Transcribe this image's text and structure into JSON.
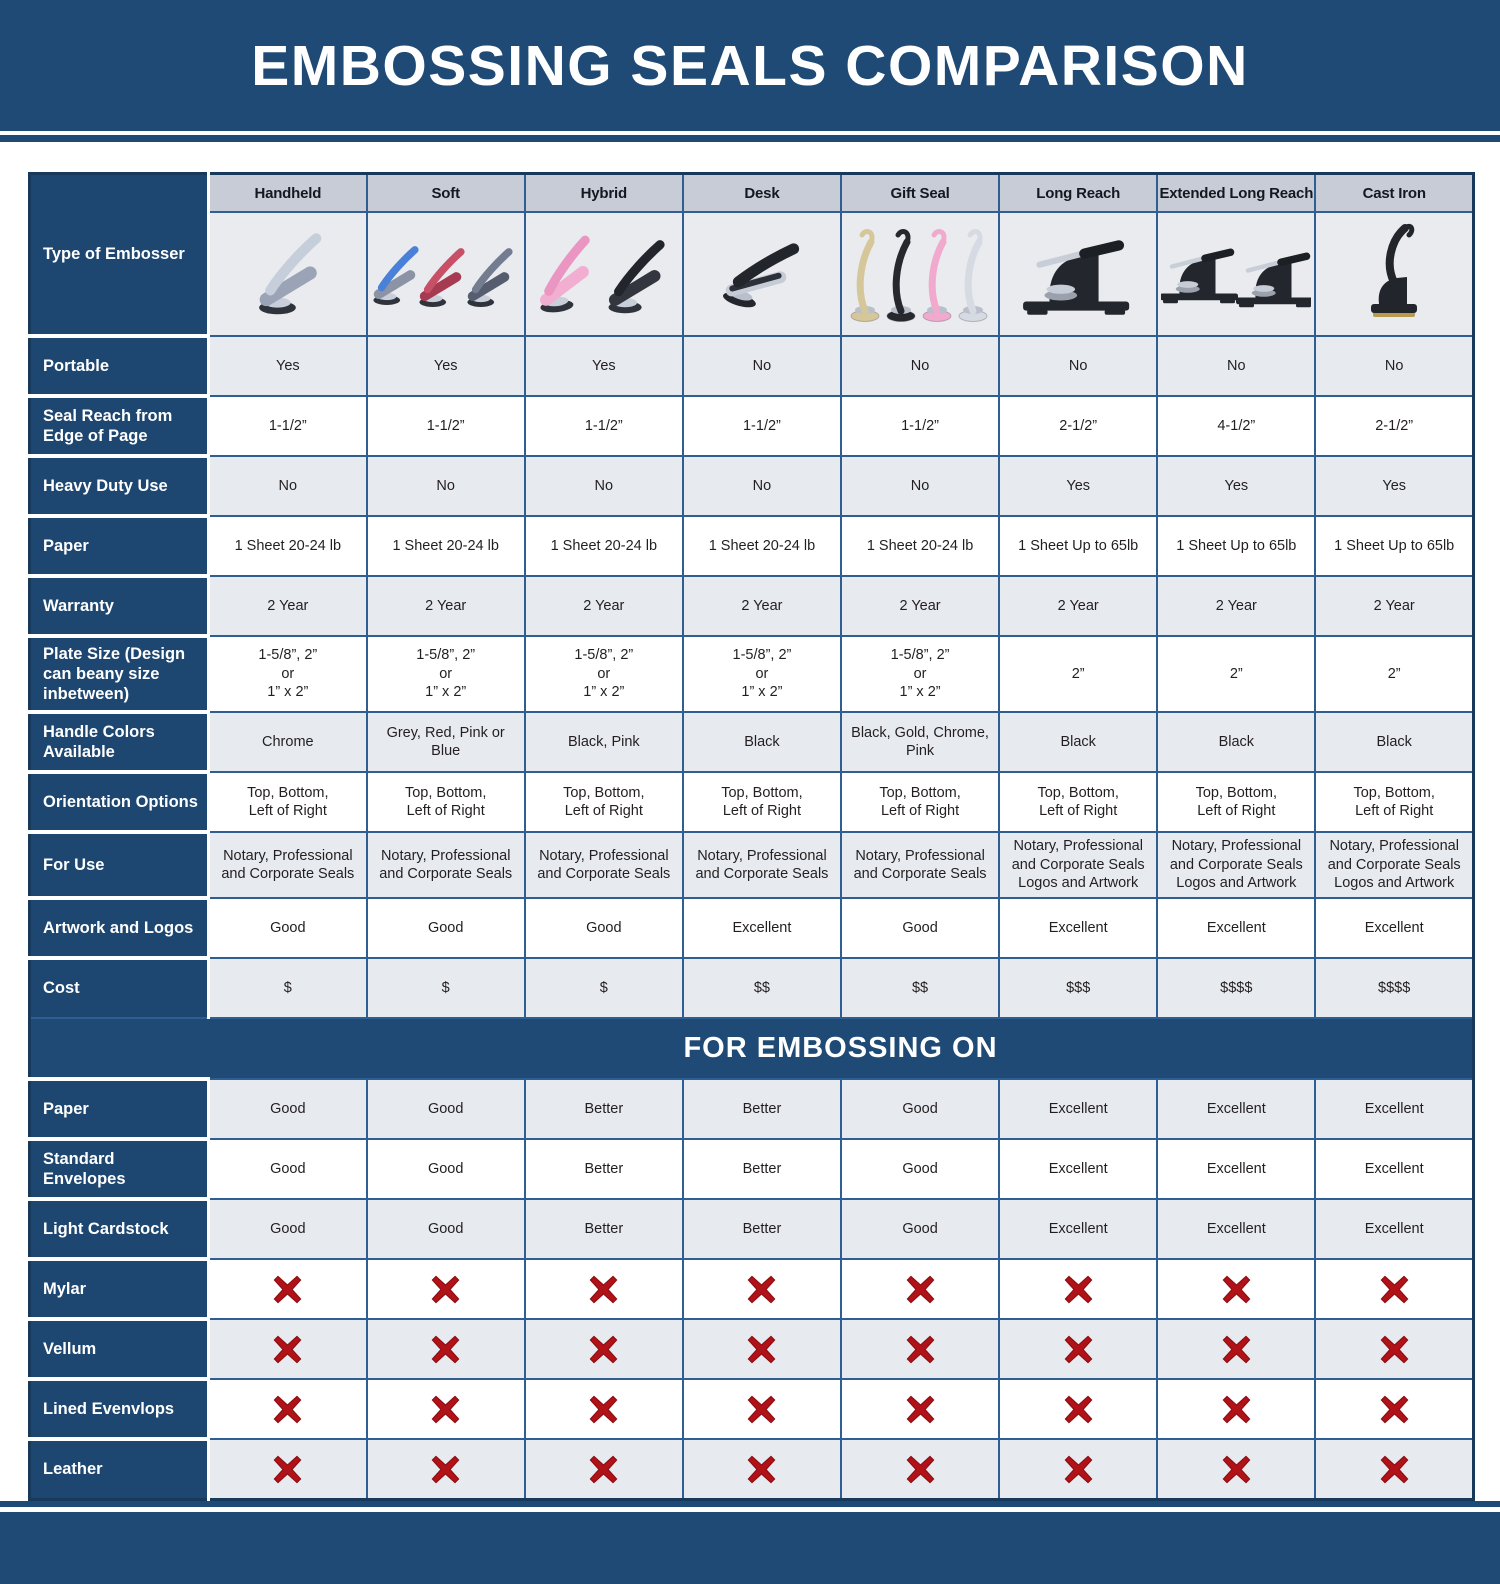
{
  "title": "EMBOSSING SEALS COMPARISON",
  "banner": "FOR EMBOSSING ON",
  "type_row_label": "Type of Embosser",
  "columns": [
    {
      "label": "Handheld",
      "image": "handheld-embosser-icon"
    },
    {
      "label": "Soft",
      "image": "soft-embosser-icon"
    },
    {
      "label": "Hybrid",
      "image": "hybrid-embosser-icon"
    },
    {
      "label": "Desk",
      "image": "desk-embosser-icon"
    },
    {
      "label": "Gift Seal",
      "image": "gift-seal-embosser-icon"
    },
    {
      "label": "Long Reach",
      "image": "long-reach-embosser-icon"
    },
    {
      "label": "Extended Long Reach",
      "image": "extended-long-reach-embosser-icon"
    },
    {
      "label": "Cast Iron",
      "image": "cast-iron-embosser-icon"
    }
  ],
  "spec_rows": [
    {
      "label": "Portable",
      "values": [
        "Yes",
        "Yes",
        "Yes",
        "No",
        "No",
        "No",
        "No",
        "No"
      ]
    },
    {
      "label": "Seal Reach from Edge of Page",
      "values": [
        "1-1/2”",
        "1-1/2”",
        "1-1/2”",
        "1-1/2”",
        "1-1/2”",
        "2-1/2”",
        "4-1/2”",
        "2-1/2”"
      ]
    },
    {
      "label": "Heavy Duty Use",
      "values": [
        "No",
        "No",
        "No",
        "No",
        "No",
        "Yes",
        "Yes",
        "Yes"
      ]
    },
    {
      "label": "Paper",
      "values": [
        "1 Sheet 20-24 lb",
        "1 Sheet 20-24 lb",
        "1 Sheet 20-24 lb",
        "1 Sheet 20-24 lb",
        "1 Sheet 20-24 lb",
        "1 Sheet Up to 65lb",
        "1 Sheet Up to 65lb",
        "1 Sheet Up to 65lb"
      ]
    },
    {
      "label": "Warranty",
      "values": [
        "2 Year",
        "2 Year",
        "2 Year",
        "2 Year",
        "2 Year",
        "2 Year",
        "2 Year",
        "2 Year"
      ]
    },
    {
      "label": "Plate Size (Design can beany size inbetween)",
      "values": [
        "1-5/8”, 2”\nor\n1” x 2”",
        "1-5/8”, 2”\nor\n1” x 2”",
        "1-5/8”, 2”\nor\n1” x 2”",
        "1-5/8”, 2”\nor\n1” x 2”",
        "1-5/8”, 2”\nor\n1” x 2”",
        "2”",
        "2”",
        "2”"
      ]
    },
    {
      "label": "Handle Colors Available",
      "values": [
        "Chrome",
        "Grey, Red, Pink or Blue",
        "Black, Pink",
        "Black",
        "Black, Gold, Chrome, Pink",
        "Black",
        "Black",
        "Black"
      ]
    },
    {
      "label": "Orientation Options",
      "values": [
        "Top, Bottom,\nLeft of Right",
        "Top, Bottom,\nLeft of Right",
        "Top, Bottom,\nLeft of Right",
        "Top, Bottom,\nLeft of Right",
        "Top, Bottom,\nLeft of Right",
        "Top, Bottom,\nLeft of Right",
        "Top, Bottom,\nLeft of Right",
        "Top, Bottom,\nLeft of Right"
      ]
    },
    {
      "label": "For Use",
      "values": [
        "Notary, Professional\nand Corporate Seals",
        "Notary, Professional\nand Corporate Seals",
        "Notary, Professional\nand Corporate Seals",
        "Notary, Professional\nand Corporate Seals",
        "Notary, Professional\nand Corporate Seals",
        "Notary, Professional\nand Corporate Seals\nLogos and Artwork",
        "Notary, Professional\nand Corporate Seals\nLogos and Artwork",
        "Notary, Professional\nand Corporate Seals\nLogos and Artwork"
      ]
    },
    {
      "label": "Artwork and Logos",
      "values": [
        "Good",
        "Good",
        "Good",
        "Excellent",
        "Good",
        "Excellent",
        "Excellent",
        "Excellent"
      ]
    },
    {
      "label": "Cost",
      "values": [
        "$",
        "$",
        "$",
        "$$",
        "$$",
        "$$$",
        "$$$$",
        "$$$$"
      ]
    }
  ],
  "embossing_rows": [
    {
      "label": "Paper",
      "values": [
        "Good",
        "Good",
        "Better",
        "Better",
        "Good",
        "Excellent",
        "Excellent",
        "Excellent"
      ]
    },
    {
      "label": "Standard Envelopes",
      "values": [
        "Good",
        "Good",
        "Better",
        "Better",
        "Good",
        "Excellent",
        "Excellent",
        "Excellent"
      ]
    },
    {
      "label": "Light Cardstock",
      "values": [
        "Good",
        "Good",
        "Better",
        "Better",
        "Good",
        "Excellent",
        "Excellent",
        "Excellent"
      ]
    },
    {
      "label": "Mylar",
      "values": [
        "✖",
        "✖",
        "✖",
        "✖",
        "✖",
        "✖",
        "✖",
        "✖"
      ]
    },
    {
      "label": "Vellum",
      "values": [
        "✖",
        "✖",
        "✖",
        "✖",
        "✖",
        "✖",
        "✖",
        "✖"
      ]
    },
    {
      "label": "Lined Evenvlops",
      "values": [
        "✖",
        "✖",
        "✖",
        "✖",
        "✖",
        "✖",
        "✖",
        "✖"
      ]
    },
    {
      "label": "Leather",
      "values": [
        "✖",
        "✖",
        "✖",
        "✖",
        "✖",
        "✖",
        "✖",
        "✖"
      ]
    }
  ],
  "icons": {
    "not_suitable": "red-x-icon"
  },
  "colors": {
    "navy_band": "#1e4a75",
    "label_navy": "#1d4670",
    "column_header_bg": "#c7ccd7",
    "image_cell_bg": "#e9ebee",
    "row_gray": "#e7ebf0",
    "row_white": "#ffffff",
    "cell_border_blue": "#2e5e92",
    "outer_border": "#16395c",
    "x_red": "#b01218",
    "text_dark": "#231f20"
  }
}
